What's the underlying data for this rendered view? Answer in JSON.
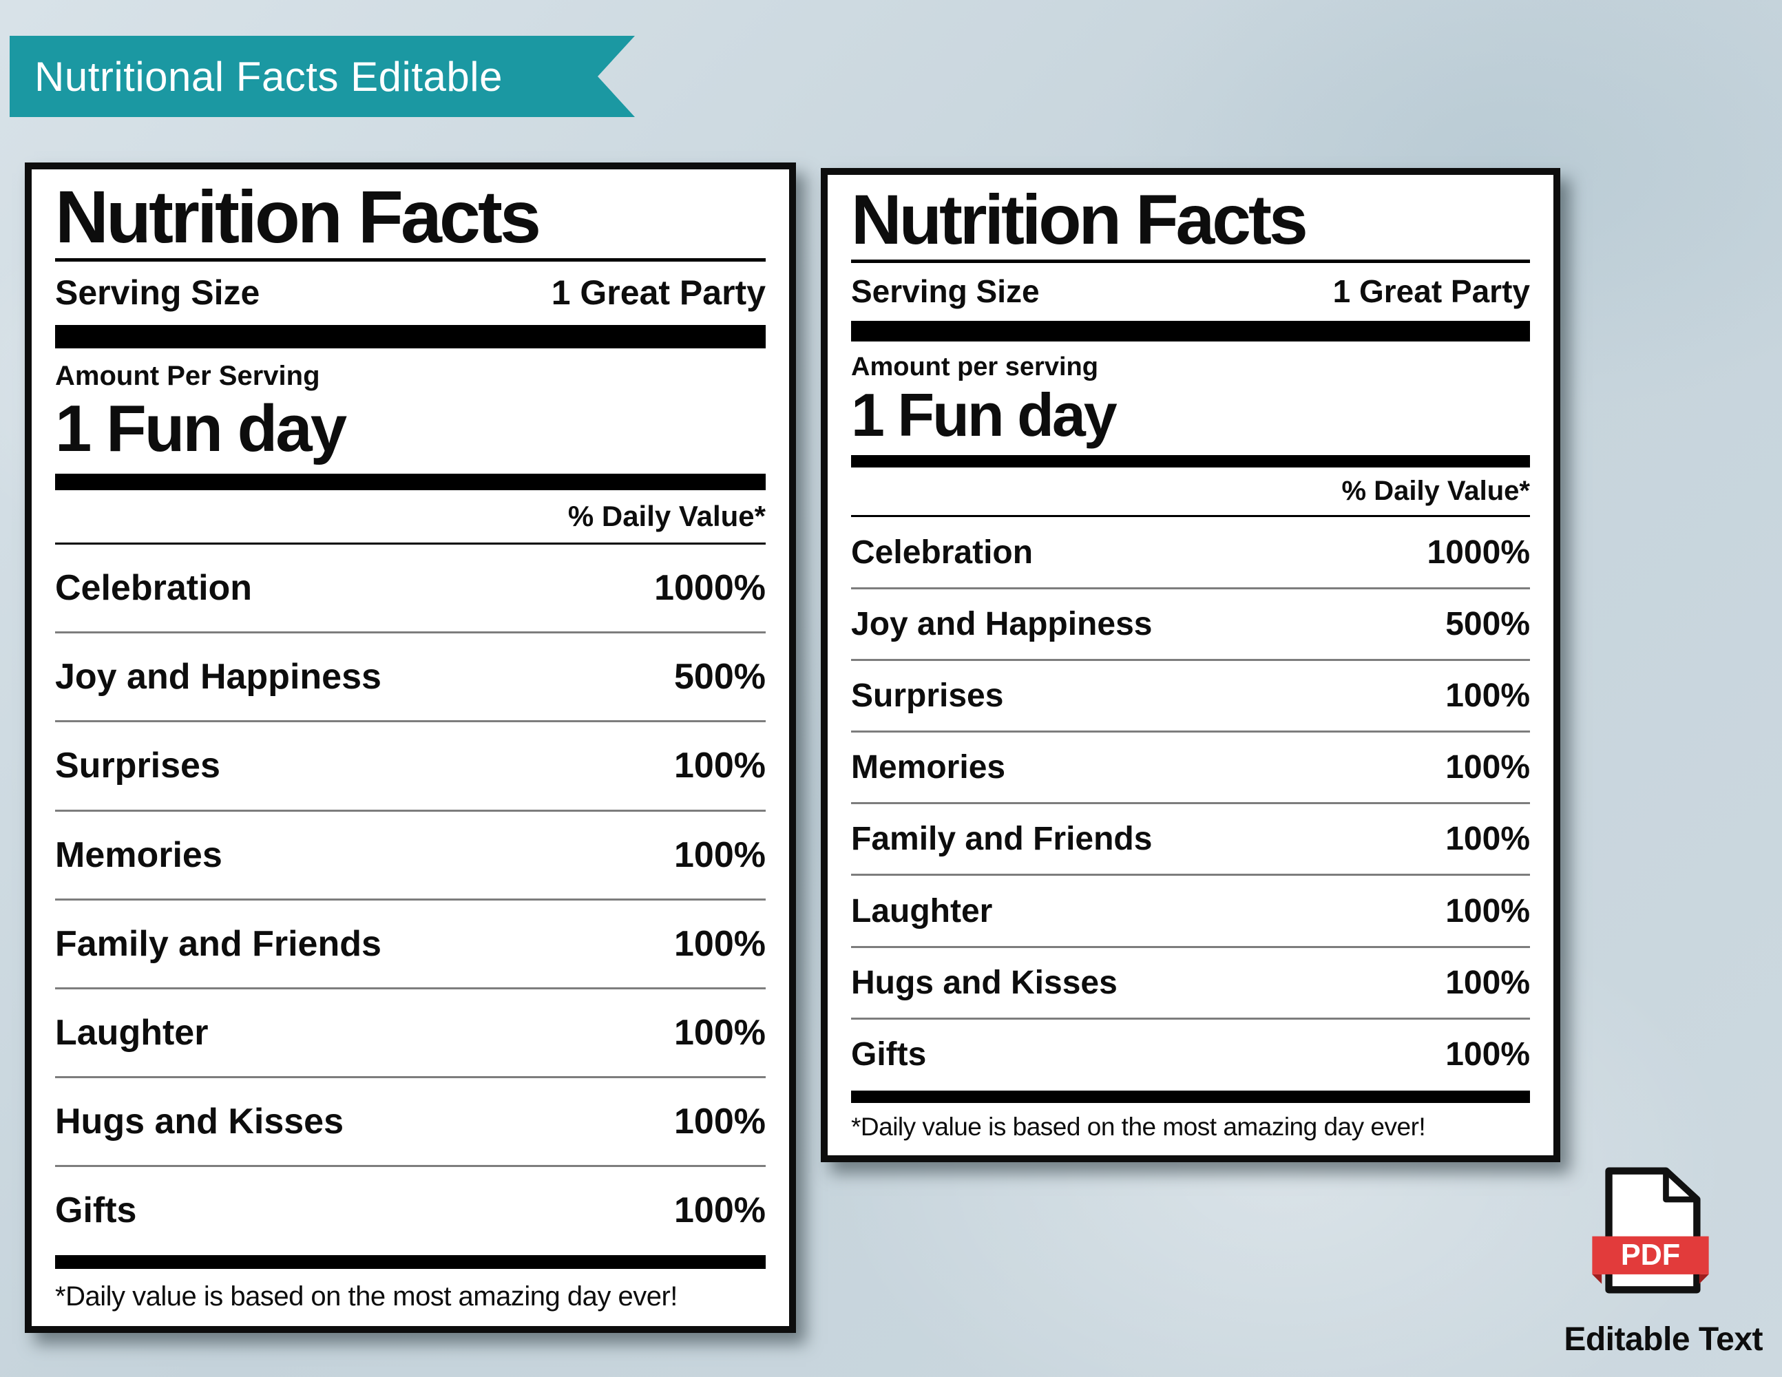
{
  "banner": {
    "label": "Nutritional Facts Editable"
  },
  "labels": [
    {
      "title": "Nutrition Facts",
      "serving_label": "Serving Size",
      "serving_value": "1 Great Party",
      "amount_label": "Amount Per Serving",
      "amount_value": "1 Fun day",
      "daily_value_header": "% Daily Value*",
      "rows": [
        {
          "name": "Celebration",
          "value": "1000%"
        },
        {
          "name": "Joy and Happiness",
          "value": "500%"
        },
        {
          "name": "Surprises",
          "value": "100%"
        },
        {
          "name": "Memories",
          "value": "100%"
        },
        {
          "name": "Family and Friends",
          "value": "100%"
        },
        {
          "name": "Laughter",
          "value": "100%"
        },
        {
          "name": "Hugs and Kisses",
          "value": "100%"
        },
        {
          "name": "Gifts",
          "value": "100%"
        }
      ],
      "footnote": "*Daily value is based on the most amazing day ever!"
    },
    {
      "title": "Nutrition Facts",
      "serving_label": "Serving Size",
      "serving_value": "1 Great Party",
      "amount_label": "Amount per serving",
      "amount_value": "1 Fun day",
      "daily_value_header": "% Daily Value*",
      "rows": [
        {
          "name": "Celebration",
          "value": "1000%"
        },
        {
          "name": "Joy and Happiness",
          "value": "500%"
        },
        {
          "name": "Surprises",
          "value": "100%"
        },
        {
          "name": "Memories",
          "value": "100%"
        },
        {
          "name": "Family and Friends",
          "value": "100%"
        },
        {
          "name": "Laughter",
          "value": "100%"
        },
        {
          "name": "Hugs and Kisses",
          "value": "100%"
        },
        {
          "name": "Gifts",
          "value": "100%"
        }
      ],
      "footnote": "*Daily value is based on the most amazing day ever!"
    }
  ],
  "pdf_badge": {
    "label": "PDF",
    "caption": "Editable Text"
  },
  "colors": {
    "ribbon_teal": "#1b98a2",
    "pdf_red": "#e23b3b",
    "background": "#ccd8df"
  }
}
